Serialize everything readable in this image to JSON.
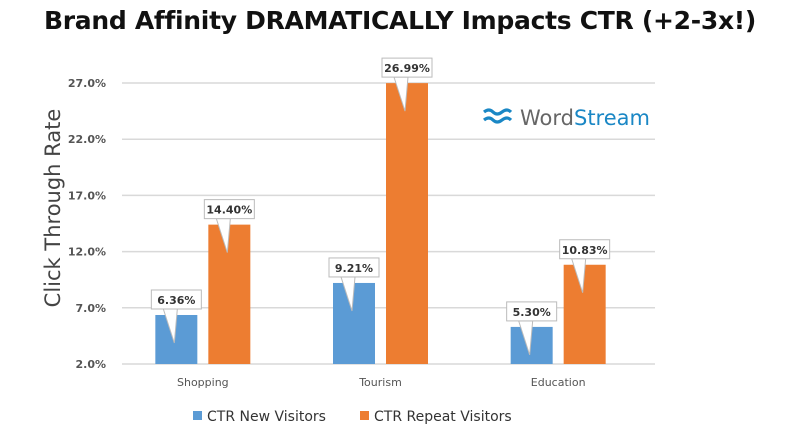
{
  "chart_data": {
    "type": "bar",
    "title": "Brand Affinity DRAMATICALLY Impacts CTR (+2-3x!)",
    "xlabel": "",
    "ylabel": "Click Through Rate",
    "ylim": [
      2.0,
      27.0
    ],
    "yticks": [
      2.0,
      7.0,
      12.0,
      17.0,
      22.0,
      27.0
    ],
    "ytick_labels": [
      "2.0%",
      "7.0%",
      "12.0%",
      "17.0%",
      "22.0%",
      "27.0%"
    ],
    "grid": true,
    "legend_position": "bottom",
    "categories": [
      "Shopping",
      "Tourism",
      "Education"
    ],
    "series": [
      {
        "name": "CTR New Visitors",
        "color": "#5b9bd5",
        "values": [
          6.36,
          9.21,
          5.3
        ],
        "labels": [
          "6.36%",
          "9.21%",
          "5.30%"
        ]
      },
      {
        "name": "CTR Repeat Visitors",
        "color": "#ed7d31",
        "values": [
          14.4,
          26.99,
          10.83
        ],
        "labels": [
          "14.40%",
          "26.99%",
          "10.83%"
        ]
      }
    ]
  },
  "watermark": {
    "text_a": "Word",
    "text_b": "Stream",
    "color": "#1a87c5"
  }
}
